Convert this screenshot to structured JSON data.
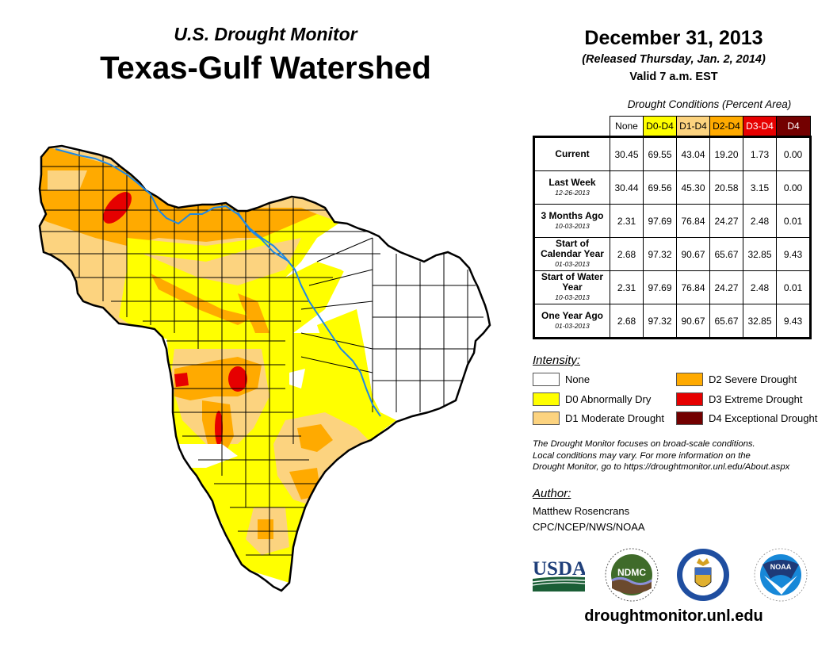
{
  "header": {
    "subtitle": "U.S. Drought Monitor",
    "title": "Texas-Gulf Watershed",
    "date": "December 31, 2013",
    "released": "(Released Thursday, Jan. 2, 2014)",
    "valid": "Valid 7 a.m. EST"
  },
  "table": {
    "caption": "Drought Conditions (Percent Area)",
    "columns": [
      {
        "label": "None",
        "color": "#ffffff",
        "text_color": "#000000"
      },
      {
        "label": "D0-D4",
        "color": "#ffff00",
        "text_color": "#000000"
      },
      {
        "label": "D1-D4",
        "color": "#fcd37f",
        "text_color": "#000000"
      },
      {
        "label": "D2-D4",
        "color": "#ffaa00",
        "text_color": "#000000"
      },
      {
        "label": "D3-D4",
        "color": "#e60000",
        "text_color": "#ffffff"
      },
      {
        "label": "D4",
        "color": "#730000",
        "text_color": "#ffffff"
      }
    ],
    "rows": [
      {
        "label": "Current",
        "sub": "",
        "values": [
          "30.45",
          "69.55",
          "43.04",
          "19.20",
          "1.73",
          "0.00"
        ]
      },
      {
        "label": "Last Week",
        "sub": "12-26-2013",
        "values": [
          "30.44",
          "69.56",
          "45.30",
          "20.58",
          "3.15",
          "0.00"
        ]
      },
      {
        "label": "3 Months Ago",
        "sub": "10-03-2013",
        "values": [
          "2.31",
          "97.69",
          "76.84",
          "24.27",
          "2.48",
          "0.01"
        ]
      },
      {
        "label": "Start of Calendar Year",
        "sub": "01-03-2013",
        "values": [
          "2.68",
          "97.32",
          "90.67",
          "65.67",
          "32.85",
          "9.43"
        ]
      },
      {
        "label": "Start of Water Year",
        "sub": "10-03-2013",
        "values": [
          "2.31",
          "97.69",
          "76.84",
          "24.27",
          "2.48",
          "0.01"
        ]
      },
      {
        "label": "One Year Ago",
        "sub": "01-03-2013",
        "values": [
          "2.68",
          "97.32",
          "90.67",
          "65.67",
          "32.85",
          "9.43"
        ]
      }
    ]
  },
  "legend": {
    "title": "Intensity:",
    "items": [
      {
        "label": "None",
        "color": "#ffffff"
      },
      {
        "label": "D0 Abnormally Dry",
        "color": "#ffff00"
      },
      {
        "label": "D1 Moderate Drought",
        "color": "#fcd37f"
      },
      {
        "label": "D2 Severe Drought",
        "color": "#ffaa00"
      },
      {
        "label": "D3 Extreme Drought",
        "color": "#e60000"
      },
      {
        "label": "D4 Exceptional Drought",
        "color": "#730000"
      }
    ]
  },
  "note": [
    "The Drought Monitor focuses on broad-scale conditions.",
    "Local conditions may vary. For more information on the",
    "Drought Monitor, go to https://droughtmonitor.unl.edu/About.aspx"
  ],
  "author": {
    "title": "Author:",
    "name": "Matthew Rosencrans",
    "org": "CPC/NCEP/NWS/NOAA"
  },
  "logos": [
    {
      "name": "usda-logo",
      "text": "USDA"
    },
    {
      "name": "ndmc-logo",
      "text": "NDMC"
    },
    {
      "name": "commerce-logo",
      "text": ""
    },
    {
      "name": "noaa-logo",
      "text": "NOAA"
    }
  ],
  "footer": {
    "url": "droughtmonitor.unl.edu"
  },
  "map": {
    "region": "Texas-Gulf Watershed",
    "colors": {
      "none": "#ffffff",
      "d0": "#ffff00",
      "d1": "#fcd37f",
      "d2": "#ffaa00",
      "d3": "#e60000",
      "river": "#1e88e5",
      "border": "#000000"
    }
  }
}
